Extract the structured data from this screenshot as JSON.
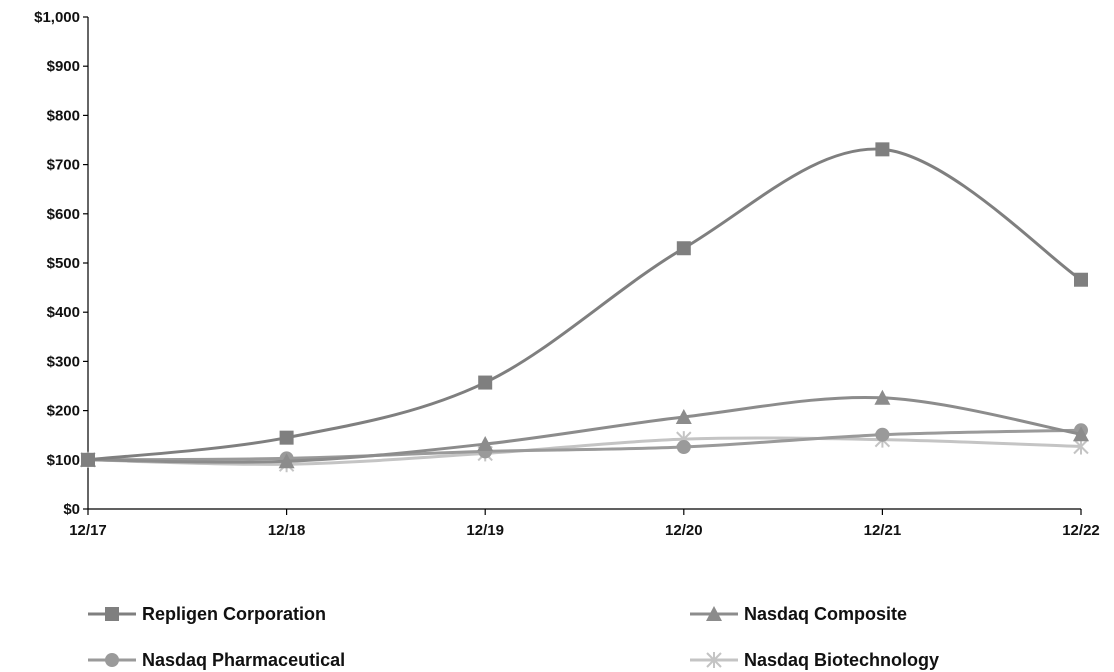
{
  "chart_data": {
    "type": "line",
    "title": "",
    "xlabel": "",
    "ylabel": "",
    "x": [
      "12/17",
      "12/18",
      "12/19",
      "12/20",
      "12/21",
      "12/22"
    ],
    "y_ticks": [
      "$0",
      "$100",
      "$200",
      "$300",
      "$400",
      "$500",
      "$600",
      "$700",
      "$800",
      "$900",
      "$1,000"
    ],
    "ylim": [
      0,
      1000
    ],
    "grid": false,
    "legend_position": "bottom",
    "series": [
      {
        "name": "Repligen Corporation",
        "marker": "square",
        "color": "#7f7f7f",
        "values": [
          100,
          145,
          257,
          530,
          731,
          466
        ]
      },
      {
        "name": "Nasdaq Composite",
        "marker": "triangle",
        "color": "#8c8c8c",
        "values": [
          100,
          97,
          132,
          187,
          226,
          152
        ]
      },
      {
        "name": "Nasdaq Pharmaceutical",
        "marker": "circle",
        "color": "#9a9a9a",
        "values": [
          100,
          103,
          117,
          126,
          151,
          160
        ]
      },
      {
        "name": "Nasdaq Biotechnology",
        "marker": "star",
        "color": "#c4c4c4",
        "values": [
          100,
          91,
          113,
          142,
          141,
          127
        ]
      }
    ]
  }
}
